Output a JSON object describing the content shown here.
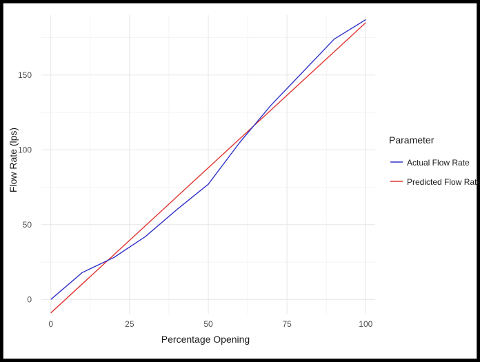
{
  "chart_data": {
    "type": "line",
    "xlabel": "Percentage Opening",
    "ylabel": "Flow Rate (lps)",
    "xlim": [
      -3,
      103
    ],
    "ylim": [
      -10,
      190
    ],
    "x_ticks": [
      0,
      25,
      50,
      75,
      100
    ],
    "x_tick_labels": [
      "0",
      "25",
      "50",
      "75",
      "100"
    ],
    "y_ticks": [
      0,
      50,
      100,
      150
    ],
    "y_tick_labels": [
      "0",
      "50",
      "100",
      "150"
    ],
    "grid": true,
    "legend": {
      "title": "Parameter",
      "position": "right"
    },
    "series": [
      {
        "name": "Actual Flow Rate",
        "color": "#3232c8",
        "x": [
          0,
          10,
          20,
          30,
          40,
          50,
          60,
          70,
          80,
          90,
          100
        ],
        "y": [
          0,
          18,
          28,
          42,
          60,
          77,
          105,
          130,
          152,
          174,
          187
        ]
      },
      {
        "name": "Predicted Flow Rate",
        "color": "#e03530",
        "x": [
          0,
          100
        ],
        "y": [
          -9,
          185
        ]
      }
    ]
  }
}
